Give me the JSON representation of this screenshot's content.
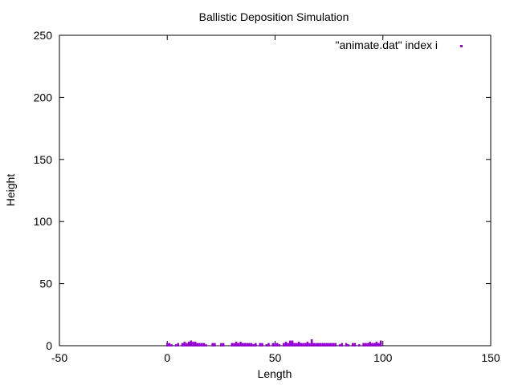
{
  "chart_data": {
    "type": "scatter",
    "title": "Ballistic Deposition Simulation",
    "xlabel": "Length",
    "ylabel": "Height",
    "xlim": [
      -50,
      150
    ],
    "ylim": [
      0,
      250
    ],
    "xticks": [
      "-50",
      "0",
      "50",
      "100",
      "150"
    ],
    "yticks": [
      "0",
      "50",
      "100",
      "150",
      "200",
      "250"
    ],
    "grid": false,
    "legend_position": "top-right",
    "series": [
      {
        "name": "\"animate.dat\" index i",
        "color": "#9400d3",
        "x": [
          0,
          1,
          2,
          4,
          5,
          7,
          8,
          9,
          10,
          11,
          12,
          13,
          14,
          15,
          16,
          17,
          18,
          21,
          22,
          25,
          26,
          30,
          31,
          32,
          33,
          34,
          35,
          36,
          37,
          38,
          39,
          40,
          41,
          43,
          44,
          46,
          47,
          49,
          50,
          51,
          52,
          54,
          55,
          56,
          57,
          58,
          59,
          60,
          61,
          62,
          63,
          64,
          65,
          66,
          67,
          68,
          69,
          70,
          71,
          72,
          73,
          74,
          75,
          76,
          77,
          78,
          80,
          81,
          83,
          84,
          86,
          87,
          89,
          91,
          92,
          93,
          94,
          95,
          96,
          97,
          98,
          99
        ],
        "y": [
          1,
          1,
          0,
          0,
          1,
          1,
          2,
          1,
          2,
          3,
          2,
          2,
          1,
          1,
          1,
          1,
          0,
          1,
          1,
          1,
          1,
          1,
          1,
          2,
          1,
          2,
          1,
          1,
          1,
          1,
          1,
          0,
          1,
          1,
          1,
          0,
          1,
          1,
          1,
          1,
          0,
          1,
          2,
          1,
          3,
          3,
          1,
          1,
          2,
          1,
          1,
          1,
          2,
          1,
          4,
          1,
          1,
          1,
          1,
          1,
          1,
          1,
          1,
          1,
          1,
          1,
          0,
          1,
          1,
          0,
          1,
          1,
          0,
          1,
          1,
          1,
          2,
          1,
          1,
          2,
          1,
          3
        ]
      }
    ]
  }
}
